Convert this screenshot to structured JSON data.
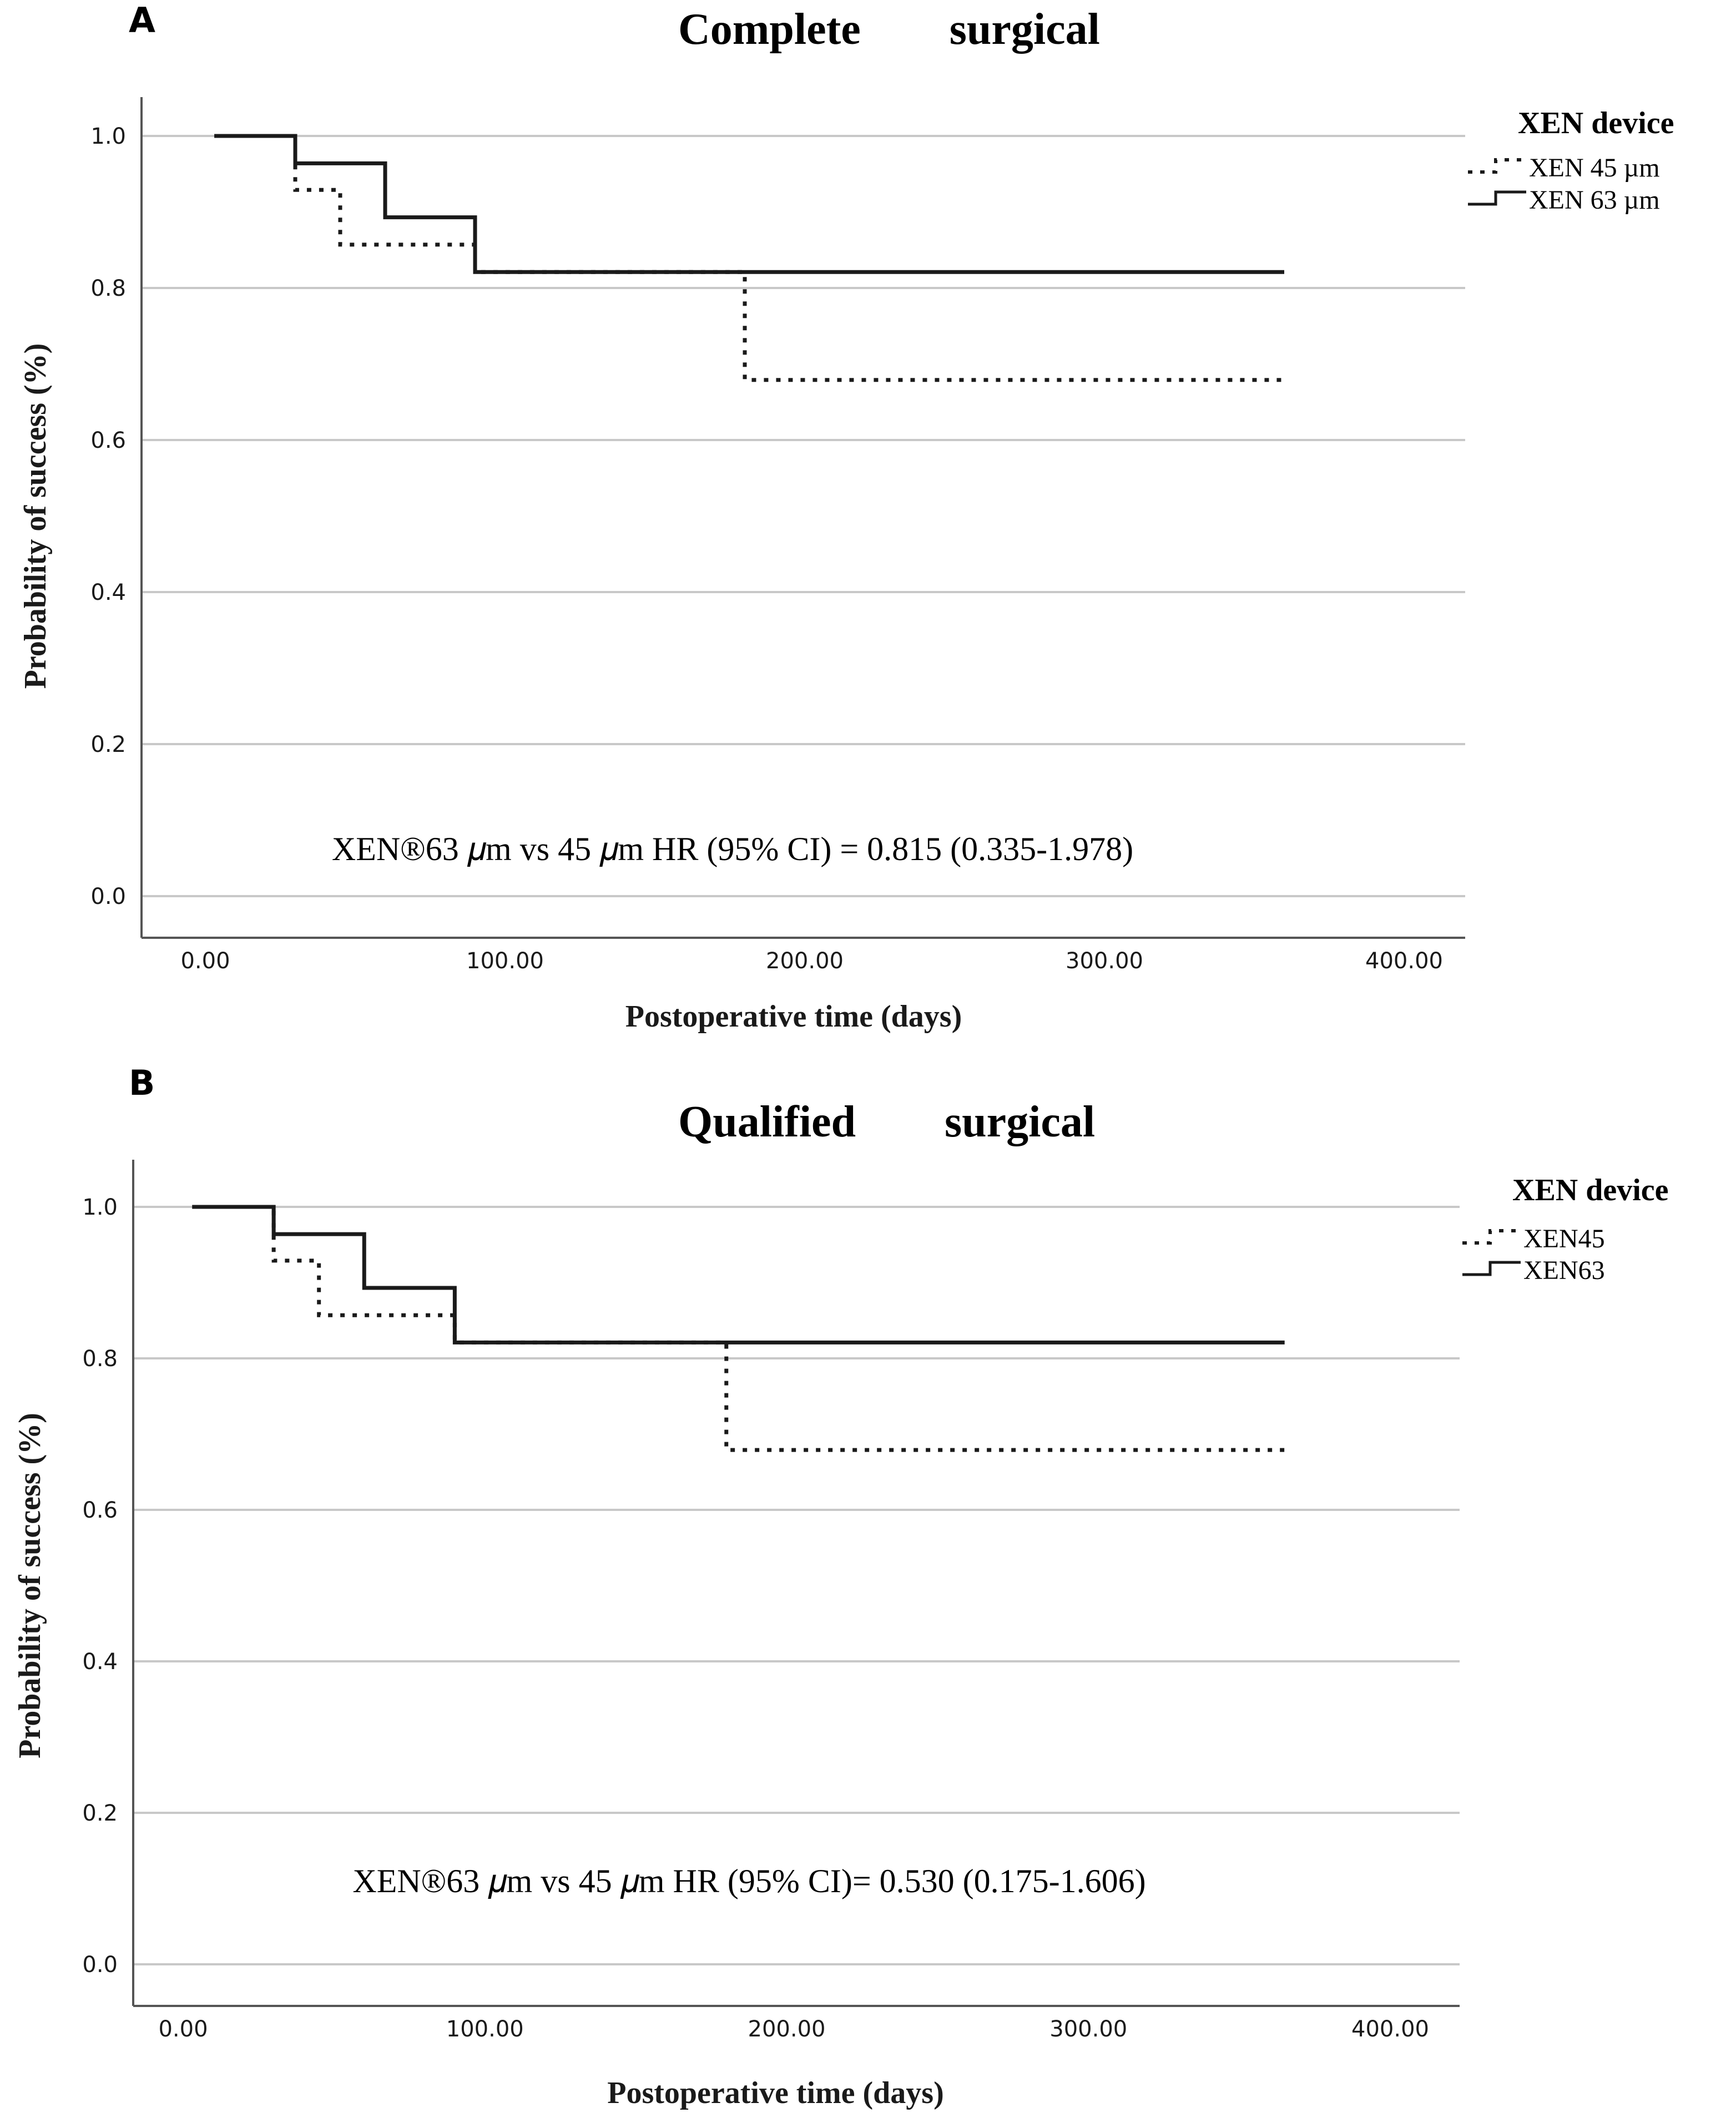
{
  "chart_data": [
    {
      "panel_label": "A",
      "type": "line",
      "subtype": "kaplan-meier-step",
      "title": "Complete        surgical",
      "xlabel": "Postoperative time (days)",
      "ylabel": "Probability of success (%)",
      "xlim": [
        0,
        400
      ],
      "ylim": [
        0,
        1.0
      ],
      "x_ticks": [
        "0.00",
        "100.00",
        "200.00",
        "300.00",
        "400.00"
      ],
      "y_ticks": [
        "0.0",
        "0.2",
        "0.4",
        "0.6",
        "0.8",
        "1.0"
      ],
      "grid": "horizontal",
      "legend": {
        "title": "XEN device",
        "position": "top-right",
        "entries": [
          "XEN 45 µm",
          "XEN 63 µm"
        ]
      },
      "annotation": "XEN®63 𝜇m vs 45 𝜇m HR (95% CI) = 0.815 (0.335-1.978)",
      "series": [
        {
          "name": "XEN 45 µm",
          "style": "dotted",
          "color": "#1a1a1a",
          "x": [
            3,
            30,
            45,
            90,
            180,
            360
          ],
          "y": [
            1.0,
            0.929,
            0.857,
            0.821,
            0.679,
            0.679
          ]
        },
        {
          "name": "XEN 63 µm",
          "style": "solid",
          "color": "#1a1a1a",
          "x": [
            3,
            30,
            60,
            90,
            360
          ],
          "y": [
            1.0,
            0.964,
            0.893,
            0.821,
            0.821
          ]
        }
      ]
    },
    {
      "panel_label": "B",
      "type": "line",
      "subtype": "kaplan-meier-step",
      "title": "Qualified        surgical",
      "xlabel": "Postoperative time (days)",
      "ylabel": "Probability of success (%)",
      "xlim": [
        0,
        400
      ],
      "ylim": [
        0,
        1.0
      ],
      "x_ticks": [
        "0.00",
        "100.00",
        "200.00",
        "300.00",
        "400.00"
      ],
      "y_ticks": [
        "0.0",
        "0.2",
        "0.4",
        "0.6",
        "0.8",
        "1.0"
      ],
      "grid": "horizontal",
      "legend": {
        "title": "XEN device",
        "position": "top-right",
        "entries": [
          "XEN45",
          "XEN63"
        ]
      },
      "annotation": "XEN®63 𝜇m vs 45 𝜇m HR (95% CI)= 0.530 (0.175-1.606)",
      "series": [
        {
          "name": "XEN45",
          "style": "dotted",
          "color": "#1a1a1a",
          "x": [
            3,
            30,
            45,
            90,
            180,
            365
          ],
          "y": [
            1.0,
            0.929,
            0.857,
            0.821,
            0.679,
            0.679
          ]
        },
        {
          "name": "XEN63",
          "style": "solid",
          "color": "#1a1a1a",
          "x": [
            3,
            30,
            60,
            90,
            365
          ],
          "y": [
            1.0,
            0.964,
            0.893,
            0.821,
            0.821
          ]
        }
      ]
    }
  ]
}
